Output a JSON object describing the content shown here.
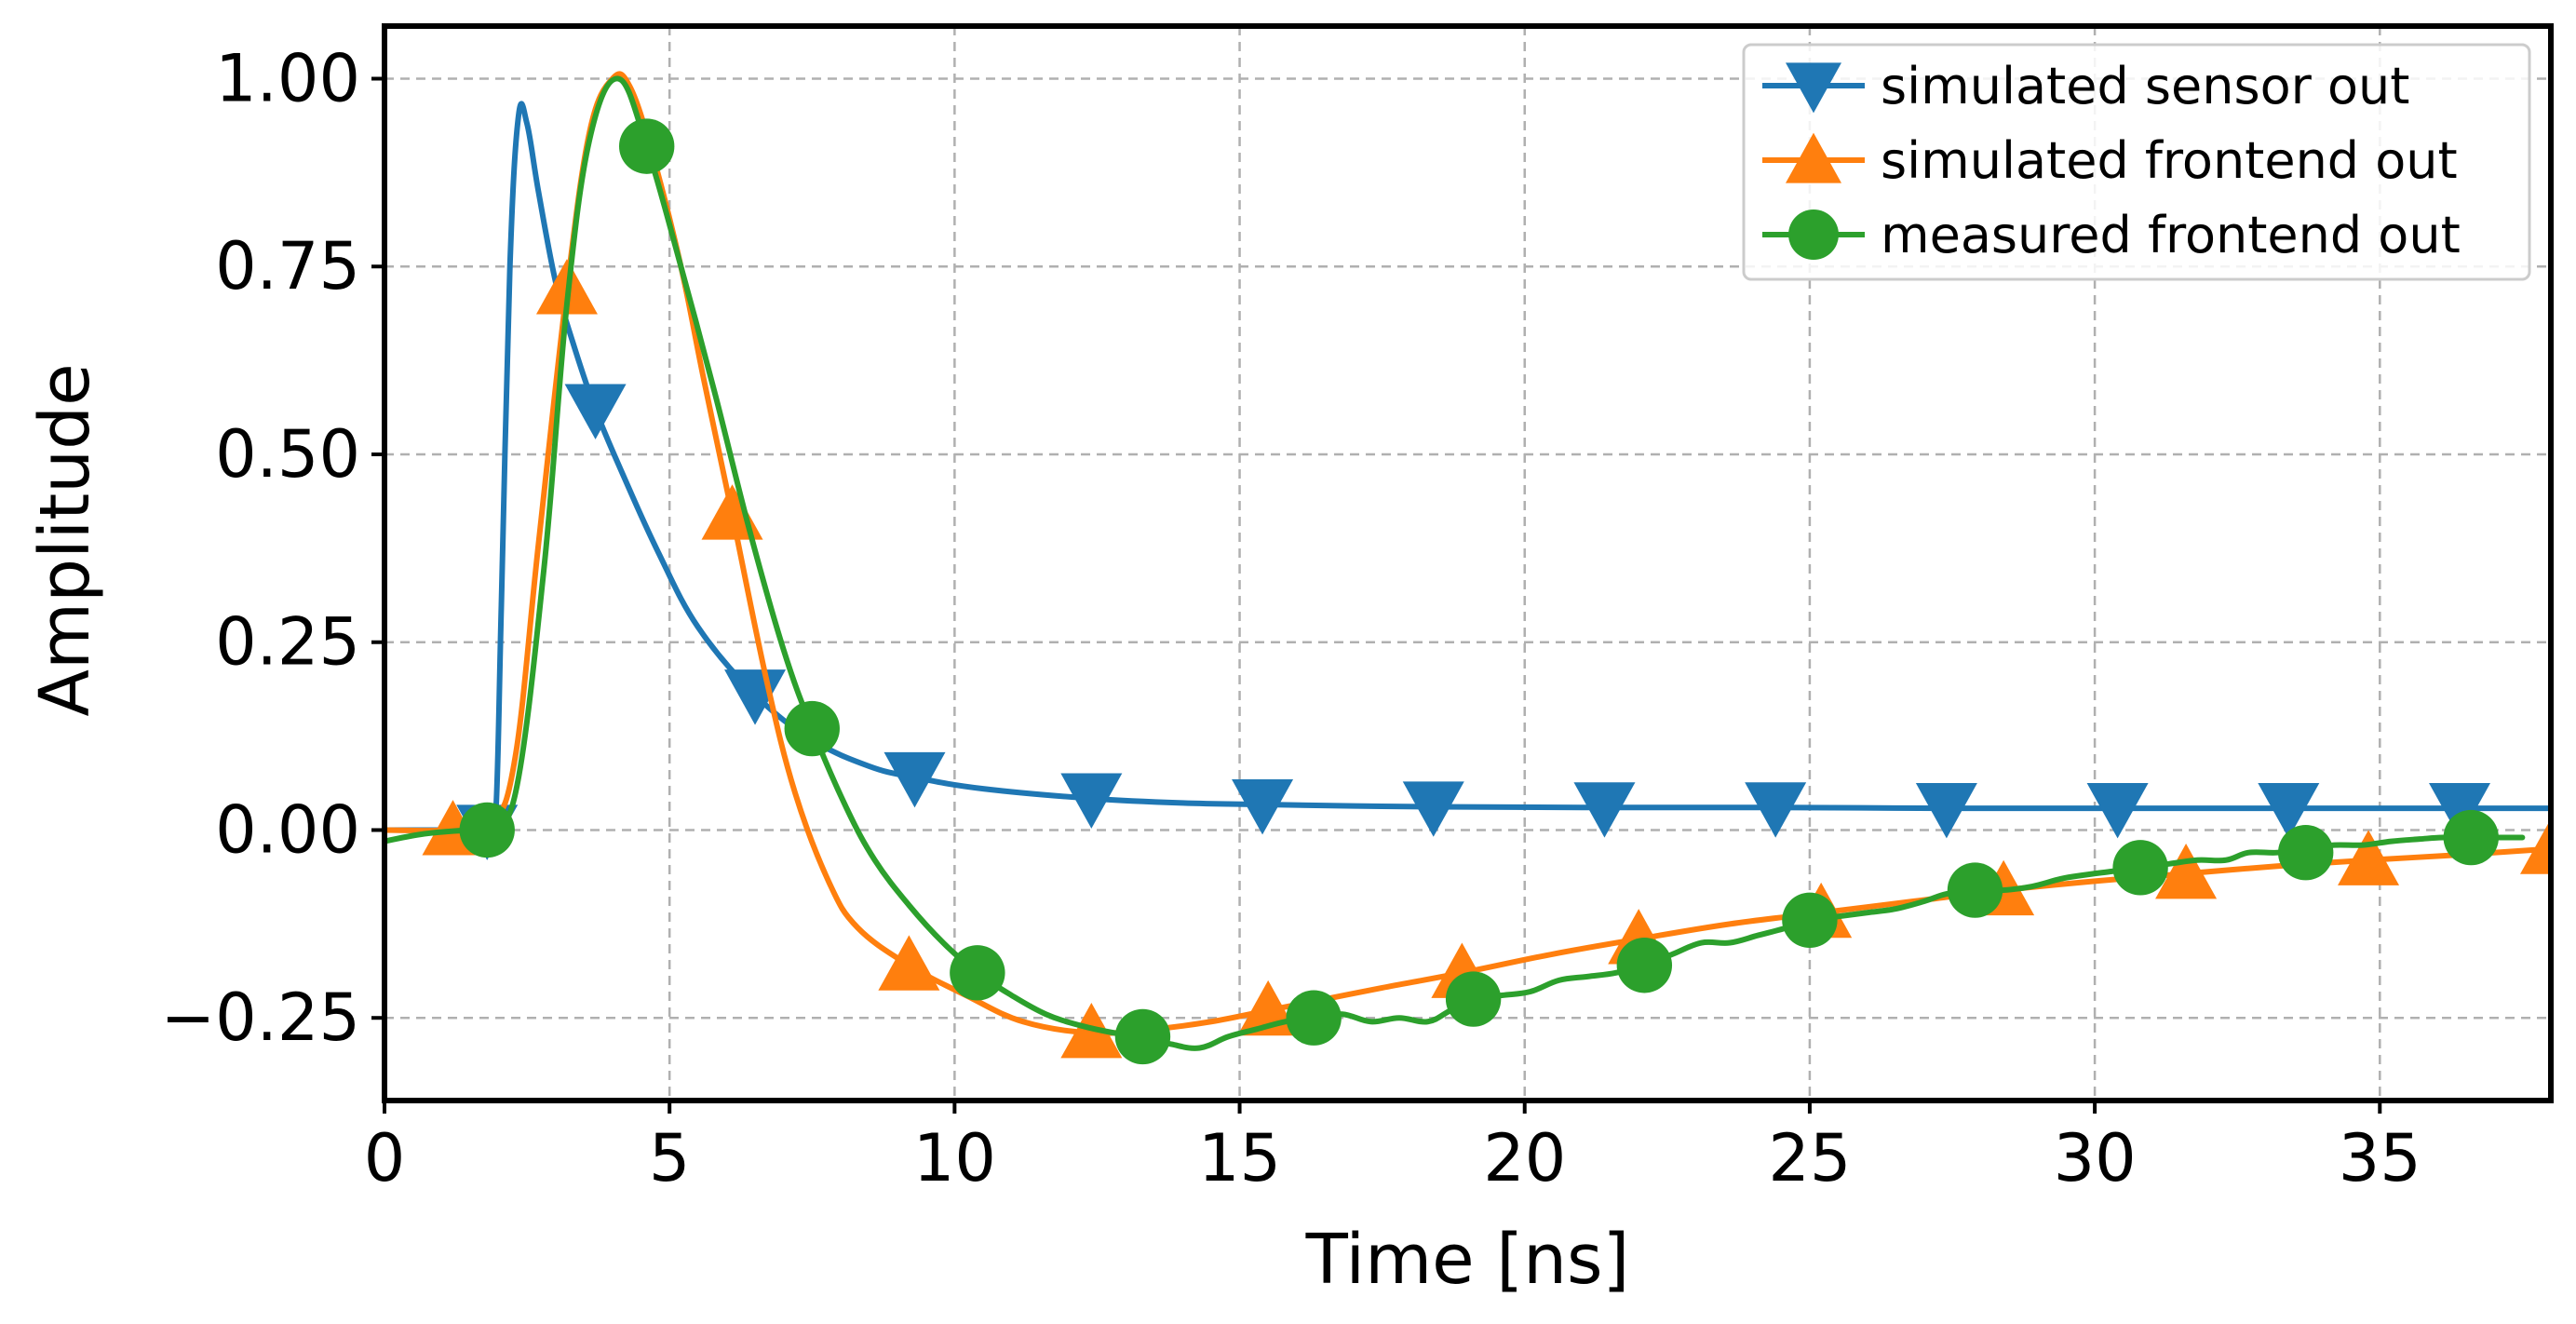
{
  "chart_data": {
    "type": "line",
    "title": "",
    "xlabel": "Time [ns]",
    "ylabel": "Amplitude",
    "xlim": [
      0,
      38
    ],
    "ylim": [
      -0.36,
      1.07
    ],
    "xticks": [
      0,
      5,
      10,
      15,
      20,
      25,
      30,
      35
    ],
    "xtick_labels": [
      "0",
      "5",
      "10",
      "15",
      "20",
      "25",
      "30",
      "35"
    ],
    "yticks": [
      1.0,
      0.75,
      0.5,
      0.25,
      0.0,
      -0.25
    ],
    "ytick_labels": [
      "1.00",
      "0.75",
      "0.50",
      "0.25",
      "0.00",
      "−0.25"
    ],
    "grid": true,
    "legend_position": "top-right",
    "series": [
      {
        "name": "simulated sensor out",
        "color": "#1f77b4",
        "marker": "triangle-down",
        "x": [
          0,
          1.0,
          1.8,
          1.95,
          2.05,
          2.2,
          2.35,
          2.5,
          2.7,
          3.0,
          3.3,
          3.7,
          4.2,
          4.8,
          5.5,
          6.5,
          7.5,
          8.5,
          9.3,
          10.5,
          12.4,
          14.0,
          15.4,
          17.0,
          18.4,
          21.4,
          24.4,
          27.4,
          30.4,
          33.4,
          36.4,
          38.0
        ],
        "y": [
          0.0,
          0.0,
          0.0,
          0.02,
          0.3,
          0.75,
          0.95,
          0.94,
          0.85,
          0.73,
          0.65,
          0.56,
          0.47,
          0.37,
          0.27,
          0.18,
          0.12,
          0.085,
          0.07,
          0.055,
          0.042,
          0.036,
          0.034,
          0.032,
          0.031,
          0.03,
          0.03,
          0.029,
          0.029,
          0.029,
          0.029,
          0.029
        ],
        "marker_x": [
          1.8,
          3.7,
          6.5,
          9.3,
          12.4,
          15.4,
          18.4,
          21.4,
          24.4,
          27.4,
          30.4,
          33.4,
          36.4
        ],
        "marker_y": [
          0.0,
          0.56,
          0.18,
          0.07,
          0.042,
          0.034,
          0.031,
          0.03,
          0.03,
          0.029,
          0.029,
          0.029,
          0.029
        ]
      },
      {
        "name": "simulated frontend out",
        "color": "#ff7f0e",
        "marker": "triangle-up",
        "x": [
          0,
          1.2,
          1.9,
          2.3,
          2.7,
          3.2,
          3.6,
          4.0,
          4.3,
          4.7,
          5.2,
          5.6,
          6.1,
          6.7,
          7.2,
          7.8,
          8.3,
          9.2,
          10.2,
          11.2,
          12.4,
          13.5,
          14.5,
          15.5,
          16.5,
          17.5,
          18.9,
          20.5,
          22.0,
          23.6,
          25.2,
          26.8,
          28.4,
          30.0,
          31.6,
          33.2,
          34.8,
          36.4,
          38.0
        ],
        "y": [
          0.0,
          0.0,
          0.01,
          0.1,
          0.38,
          0.72,
          0.93,
          1.0,
          0.99,
          0.9,
          0.75,
          0.6,
          0.42,
          0.2,
          0.05,
          -0.07,
          -0.13,
          -0.18,
          -0.22,
          -0.255,
          -0.27,
          -0.265,
          -0.255,
          -0.24,
          -0.225,
          -0.21,
          -0.19,
          -0.165,
          -0.145,
          -0.125,
          -0.11,
          -0.095,
          -0.08,
          -0.068,
          -0.058,
          -0.048,
          -0.04,
          -0.033,
          -0.025
        ],
        "marker_x": [
          1.2,
          3.2,
          6.1,
          9.2,
          12.4,
          15.5,
          18.9,
          22.0,
          25.2,
          28.4,
          31.6,
          34.8,
          38.0
        ],
        "marker_y": [
          0.0,
          0.72,
          0.42,
          -0.18,
          -0.27,
          -0.24,
          -0.19,
          -0.145,
          -0.11,
          -0.08,
          -0.058,
          -0.04,
          -0.025
        ]
      },
      {
        "name": "measured frontend out",
        "color": "#2ca02c",
        "marker": "circle",
        "x": [
          0,
          0.7,
          1.5,
          1.8,
          2.3,
          2.8,
          3.2,
          3.6,
          4.1,
          4.6,
          5.2,
          5.8,
          6.4,
          7.0,
          7.5,
          8.1,
          8.6,
          9.2,
          9.8,
          10.4,
          11.0,
          11.6,
          12.2,
          12.8,
          13.3,
          13.8,
          14.3,
          14.8,
          15.3,
          15.8,
          16.3,
          16.8,
          17.3,
          17.8,
          18.3,
          18.7,
          19.1,
          19.6,
          20.1,
          20.6,
          21.1,
          21.6,
          22.1,
          22.6,
          23.1,
          23.6,
          24.1,
          24.6,
          25.0,
          25.5,
          26.0,
          26.5,
          27.0,
          27.4,
          27.9,
          28.4,
          28.9,
          29.4,
          29.8,
          30.3,
          30.8,
          31.3,
          31.8,
          32.3,
          32.7,
          33.2,
          33.7,
          34.2,
          34.7,
          35.2,
          35.7,
          36.1,
          36.6,
          37.1,
          37.5
        ],
        "y": [
          -0.015,
          -0.005,
          0.0,
          0.0,
          0.05,
          0.35,
          0.7,
          0.92,
          1.0,
          0.91,
          0.75,
          0.58,
          0.4,
          0.24,
          0.135,
          0.03,
          -0.04,
          -0.1,
          -0.15,
          -0.19,
          -0.22,
          -0.245,
          -0.26,
          -0.27,
          -0.275,
          -0.285,
          -0.29,
          -0.275,
          -0.265,
          -0.255,
          -0.25,
          -0.245,
          -0.255,
          -0.25,
          -0.255,
          -0.24,
          -0.225,
          -0.22,
          -0.215,
          -0.2,
          -0.195,
          -0.19,
          -0.18,
          -0.165,
          -0.15,
          -0.15,
          -0.14,
          -0.13,
          -0.12,
          -0.115,
          -0.11,
          -0.105,
          -0.095,
          -0.085,
          -0.08,
          -0.08,
          -0.075,
          -0.065,
          -0.06,
          -0.055,
          -0.05,
          -0.045,
          -0.04,
          -0.04,
          -0.03,
          -0.03,
          -0.025,
          -0.02,
          -0.02,
          -0.015,
          -0.012,
          -0.01,
          -0.01,
          -0.01,
          -0.01
        ],
        "marker_x": [
          1.8,
          4.6,
          7.5,
          10.4,
          13.3,
          16.3,
          19.1,
          22.1,
          25.0,
          27.9,
          30.8,
          33.7,
          36.6
        ],
        "marker_y": [
          0.0,
          0.91,
          0.135,
          -0.19,
          -0.275,
          -0.25,
          -0.225,
          -0.18,
          -0.12,
          -0.08,
          -0.05,
          -0.03,
          -0.01
        ]
      }
    ]
  }
}
